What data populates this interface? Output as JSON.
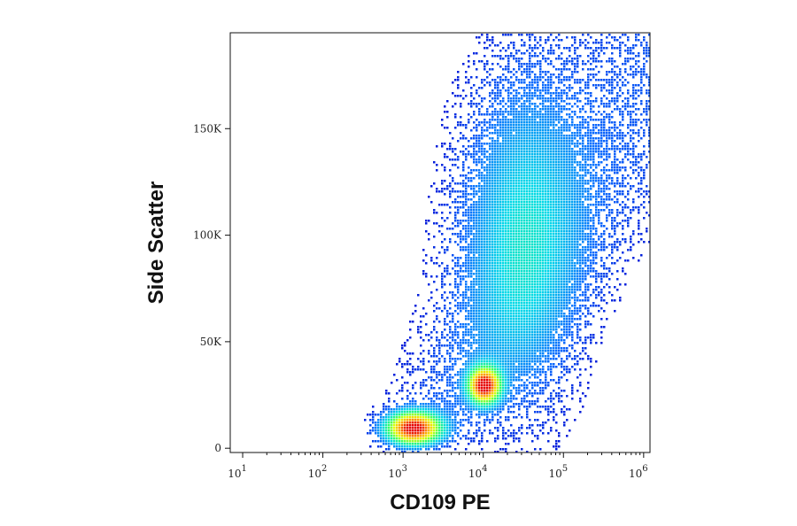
{
  "chart_data": {
    "type": "scatter",
    "subtype": "flow-cytometry density plot",
    "xlabel": "CD109 PE",
    "ylabel": "Side Scatter",
    "x_scale": "log",
    "xlim": [
      7,
      1200000
    ],
    "ylim": [
      -2000,
      195000
    ],
    "grid": false,
    "x_ticks": [
      {
        "value": 10,
        "base": "10",
        "exp": "1"
      },
      {
        "value": 100,
        "base": "10",
        "exp": "2"
      },
      {
        "value": 1000,
        "base": "10",
        "exp": "3"
      },
      {
        "value": 10000,
        "base": "10",
        "exp": "4"
      },
      {
        "value": 100000,
        "base": "10",
        "exp": "5"
      },
      {
        "value": 1000000,
        "base": "10",
        "exp": "6"
      }
    ],
    "y_ticks": [
      {
        "value": 0,
        "label": "0"
      },
      {
        "value": 50000,
        "label": "50K"
      },
      {
        "value": 100000,
        "label": "100K"
      },
      {
        "value": 150000,
        "label": "150K"
      }
    ],
    "colormap": [
      "#0000cc",
      "#0a6cff",
      "#00d9e8",
      "#33ff66",
      "#e6ff00",
      "#ff9900",
      "#e60000"
    ],
    "populations": [
      {
        "name": "low",
        "x_center": 1300,
        "y_center": 10000,
        "x_spread_decades": 0.22,
        "y_spread": 5000,
        "density": "high"
      },
      {
        "name": "mid",
        "x_center": 10000,
        "y_center": 30000,
        "x_spread_decades": 0.13,
        "y_spread": 5500,
        "density": "high"
      },
      {
        "name": "diffuse",
        "x_center": 30000,
        "y_center": 100000,
        "x_spread_decades": 0.5,
        "y_spread": 50000,
        "density": "low"
      }
    ]
  }
}
